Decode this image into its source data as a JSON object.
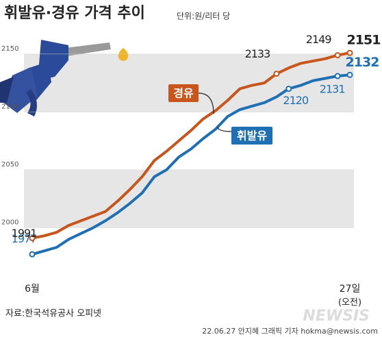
{
  "chart_data": {
    "type": "line",
    "title": "휘발유·경유 가격 추이",
    "unit": "단위:원/리터 당",
    "categories": [
      "6월",
      null,
      null,
      null,
      null,
      null,
      null,
      null,
      null,
      null,
      null,
      null,
      null,
      null,
      null,
      null,
      null,
      null,
      null,
      null,
      null,
      null,
      null,
      null,
      null,
      null,
      "27일"
    ],
    "x_note": "(오전)",
    "series": [
      {
        "name": "휘발유",
        "color": "#1f6fb5",
        "values": [
          1977,
          1980,
          1983,
          1990,
          1995,
          2000,
          2006,
          2013,
          2021,
          2030,
          2044,
          2050,
          2061,
          2068,
          2077,
          2085,
          2096,
          2102,
          2105,
          2108,
          2113,
          2120,
          2123,
          2127,
          2129,
          2131,
          2132
        ]
      },
      {
        "name": "경유",
        "color": "#c8561c",
        "values": [
          1991,
          1993,
          1996,
          2002,
          2006,
          2010,
          2014,
          2023,
          2033,
          2044,
          2058,
          2066,
          2075,
          2084,
          2094,
          2101,
          2110,
          2120,
          2123,
          2125,
          2133,
          2138,
          2142,
          2144,
          2146,
          2149,
          2151
        ]
      }
    ],
    "ylim": [
      1960,
      2160
    ],
    "yticks": [
      2000,
      2050,
      2100,
      2150
    ],
    "band_color": "#e6e6e6",
    "source": "자료:한국석유공사 오피넷",
    "credit": "22.06.27 안지혜 그래픽 기자 hokma@newsis.com",
    "watermark": "NEWSIS"
  }
}
